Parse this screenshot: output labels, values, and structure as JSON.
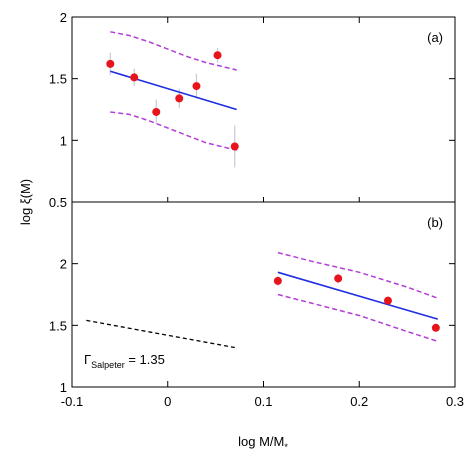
{
  "chart_data": {
    "type": "scatter",
    "xlabel": "log M/M",
    "xlabel_sub": "*",
    "ylabel": "log ξ(M)",
    "xlim": [
      -0.1,
      0.3
    ],
    "x_ticks": [
      -0.1,
      0,
      0.1,
      0.2,
      0.3
    ],
    "x_tick_labels": [
      "-0.1",
      "0",
      "0.1",
      "0.2",
      "0.3"
    ],
    "colors": {
      "points": "#e8141b",
      "fit": "#1f2de0",
      "band": "#b23fd6",
      "salpeter": "#000000",
      "errorbar": "#c8c8d8"
    },
    "panels": [
      {
        "label": "(a)",
        "ylim": [
          0.5,
          2
        ],
        "y_ticks": [
          0.5,
          1,
          1.5,
          2
        ],
        "y_tick_labels": [
          "0.5",
          "1",
          "1.5",
          "2"
        ],
        "points": [
          {
            "x": -0.06,
            "y": 1.62,
            "err": 0.09
          },
          {
            "x": -0.035,
            "y": 1.51,
            "err": 0.07
          },
          {
            "x": -0.012,
            "y": 1.23,
            "err": 0.1
          },
          {
            "x": 0.012,
            "y": 1.34,
            "err": 0.08
          },
          {
            "x": 0.03,
            "y": 1.44,
            "err": 0.1
          },
          {
            "x": 0.052,
            "y": 1.69,
            "err": 0.06
          },
          {
            "x": 0.07,
            "y": 0.95,
            "err": 0.17
          }
        ],
        "fit": {
          "x": [
            -0.06,
            0.072
          ],
          "y": [
            1.56,
            1.25
          ]
        },
        "upper_band": {
          "x": [
            -0.06,
            -0.04,
            -0.02,
            0,
            0.02,
            0.04,
            0.072
          ],
          "y": [
            1.88,
            1.85,
            1.8,
            1.74,
            1.68,
            1.63,
            1.57
          ]
        },
        "lower_band": {
          "x": [
            -0.06,
            -0.04,
            -0.02,
            0,
            0.02,
            0.04,
            0.072
          ],
          "y": [
            1.23,
            1.21,
            1.16,
            1.1,
            1.04,
            0.98,
            0.92
          ]
        }
      },
      {
        "label": "(b)",
        "ylim": [
          1,
          2.5
        ],
        "y_ticks": [
          1,
          1.5,
          2
        ],
        "y_tick_labels": [
          "1",
          "1.5",
          "2"
        ],
        "points": [
          {
            "x": 0.115,
            "y": 1.86,
            "err": 0.04
          },
          {
            "x": 0.178,
            "y": 1.88,
            "err": 0.04
          },
          {
            "x": 0.23,
            "y": 1.7,
            "err": 0.03
          },
          {
            "x": 0.28,
            "y": 1.48,
            "err": 0.03
          }
        ],
        "fit": {
          "x": [
            0.115,
            0.282
          ],
          "y": [
            1.93,
            1.55
          ]
        },
        "upper_band": {
          "x": [
            0.115,
            0.15,
            0.2,
            0.25,
            0.282
          ],
          "y": [
            2.09,
            2.02,
            1.93,
            1.81,
            1.72
          ]
        },
        "lower_band": {
          "x": [
            0.115,
            0.15,
            0.2,
            0.25,
            0.282
          ],
          "y": [
            1.75,
            1.68,
            1.58,
            1.45,
            1.37
          ]
        },
        "salpeter_line": {
          "x": [
            -0.085,
            0.07
          ],
          "y": [
            1.54,
            1.32
          ]
        },
        "annotation": {
          "symbol": "Γ",
          "subscript": "Salpeter",
          "text": " = 1.35"
        }
      }
    ]
  }
}
